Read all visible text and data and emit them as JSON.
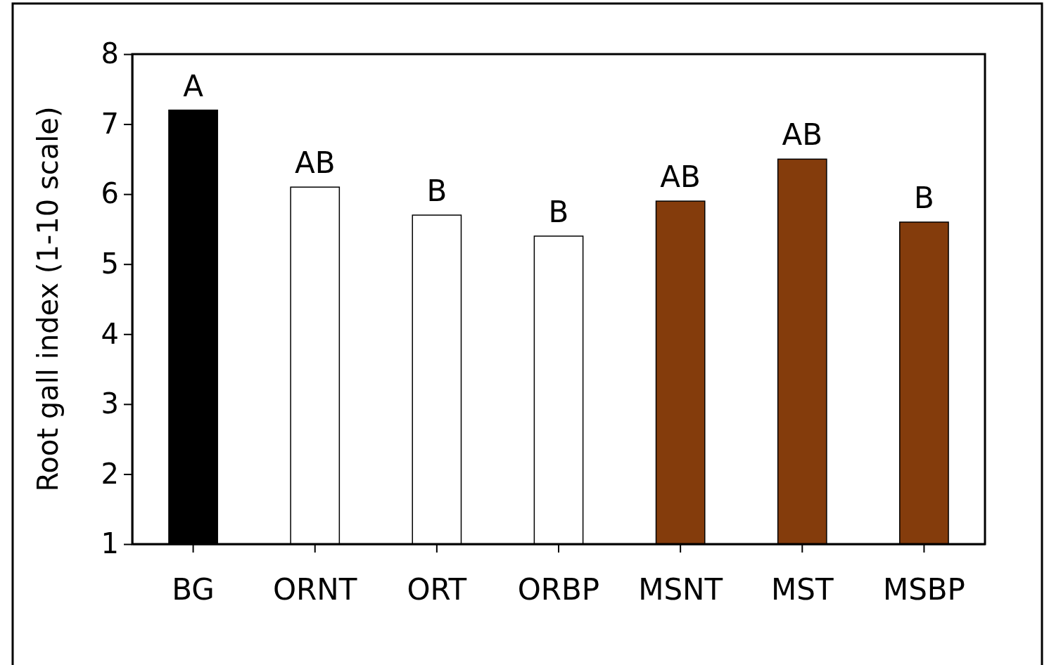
{
  "chart_data": {
    "type": "bar",
    "ylabel": "Root gall index (1-10 scale)",
    "categories": [
      "BG",
      "ORNT",
      "ORT",
      "ORBP",
      "MSNT",
      "MST",
      "MSBP"
    ],
    "values": [
      7.2,
      6.1,
      5.7,
      5.4,
      5.9,
      6.5,
      5.6
    ],
    "colors": [
      "#000000",
      "#ffffff",
      "#ffffff",
      "#ffffff",
      "#843c0c",
      "#843c0c",
      "#843c0c"
    ],
    "ylim": [
      1,
      8
    ],
    "yticks": [
      1,
      2,
      3,
      4,
      5,
      6,
      7,
      8
    ],
    "grid": false,
    "annotations": [
      {
        "text": "A",
        "x": "BG",
        "y": 7.2
      },
      {
        "text": "AB",
        "x": "ORNT",
        "y": 6.1
      },
      {
        "text": "B",
        "x": "ORT",
        "y": 5.7
      },
      {
        "text": "B",
        "x": "ORBP",
        "y": 5.4
      },
      {
        "text": "AB",
        "x": "MSNT",
        "y": 5.9
      },
      {
        "text": "AB",
        "x": "MST",
        "y": 6.5
      },
      {
        "text": "B",
        "x": "MSBP",
        "y": 5.6
      }
    ]
  }
}
